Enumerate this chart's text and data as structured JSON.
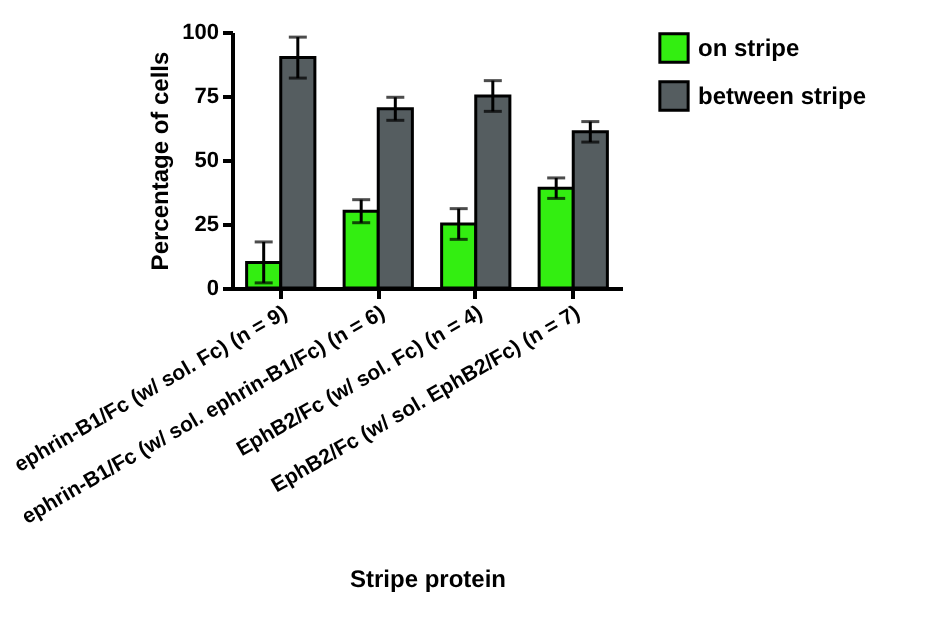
{
  "chart_data": {
    "type": "bar",
    "xlabel": "Stripe protein",
    "ylabel": "Percentage of cells",
    "categories": [
      "ephrin-B1/Fc (w/ sol. Fc) (n = 9)",
      "ephrin-B1/Fc (w/ sol. ephrin-B1/Fc) (n = 6)",
      "EphB2/Fc (w/ sol. Fc) (n = 4)",
      "EphB2/Fc (w/ sol. EphB2/Fc) (n = 7)"
    ],
    "series": [
      {
        "name": "on stripe",
        "color": "#33ee11",
        "values": [
          10,
          30,
          25,
          39
        ],
        "errors": [
          8,
          4.5,
          6,
          4
        ]
      },
      {
        "name": "between stripe",
        "color": "#555d60",
        "values": [
          90,
          70,
          75,
          61
        ],
        "errors": [
          8,
          4.5,
          6,
          4
        ]
      }
    ],
    "ylim": [
      0,
      100
    ],
    "yticks": [
      0,
      25,
      50,
      75,
      100
    ],
    "grid": false,
    "legend": "top right"
  }
}
